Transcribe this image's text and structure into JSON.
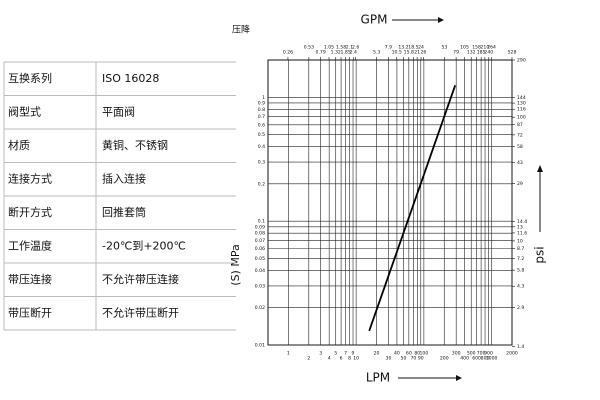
{
  "table": {
    "rows": [
      [
        "互换系列",
        "ISO 16028"
      ],
      [
        "阀型式",
        "平面阀"
      ],
      [
        "材质",
        "黄铜、不锈钢"
      ],
      [
        "连接方式",
        "插入连接"
      ],
      [
        "断开方式",
        "回推套筒"
      ],
      [
        "工作温度",
        "-20℃到+200℃"
      ],
      [
        "带压连接",
        "不允许带压连接"
      ],
      [
        "带压断开",
        "不允许带压断开"
      ]
    ]
  },
  "chart_data": {
    "type": "line",
    "title": "压降",
    "x_label": "LPM",
    "x2_label": "GPM",
    "y_label": "(S) MPa",
    "y2_label": "psi",
    "log_x": true,
    "log_y": true,
    "grid": true,
    "xlim": [
      0.5,
      2000
    ],
    "x2lim": [
      0.132,
      528
    ],
    "ylim": [
      0.01,
      2
    ],
    "y2lim": [
      1.44,
      290
    ],
    "xticks": [
      1,
      2,
      3,
      4,
      5,
      6,
      7,
      8,
      9,
      10,
      20,
      30,
      40,
      50,
      60,
      70,
      80,
      90,
      100,
      200,
      300,
      400,
      500,
      600,
      700,
      800,
      900,
      1000,
      2000
    ],
    "x2ticks": [
      0.26,
      0.53,
      0.79,
      1.05,
      1.32,
      1.58,
      1.85,
      2.1,
      2.4,
      2.6,
      5.3,
      7.9,
      10.5,
      13.2,
      15.8,
      18.5,
      21,
      24,
      26,
      53,
      79,
      105,
      132,
      158,
      185,
      210,
      240,
      264,
      528
    ],
    "yticks": [
      0.01,
      0.02,
      0.03,
      0.04,
      0.05,
      0.06,
      0.07,
      0.08,
      0.09,
      0.1,
      0.2,
      0.3,
      0.4,
      0.5,
      0.6,
      0.7,
      0.8,
      0.9,
      1
    ],
    "y2ticks": [
      1.4,
      2.9,
      4.3,
      5.8,
      7.2,
      8.7,
      10,
      11.6,
      13,
      14.4,
      29,
      43,
      58,
      72,
      87,
      100,
      116,
      130,
      144,
      290
    ],
    "x": [
      15.6,
      290
    ],
    "series": [
      {
        "color": "#000000",
        "values": [
          0.013,
          1.25
        ]
      }
    ]
  }
}
